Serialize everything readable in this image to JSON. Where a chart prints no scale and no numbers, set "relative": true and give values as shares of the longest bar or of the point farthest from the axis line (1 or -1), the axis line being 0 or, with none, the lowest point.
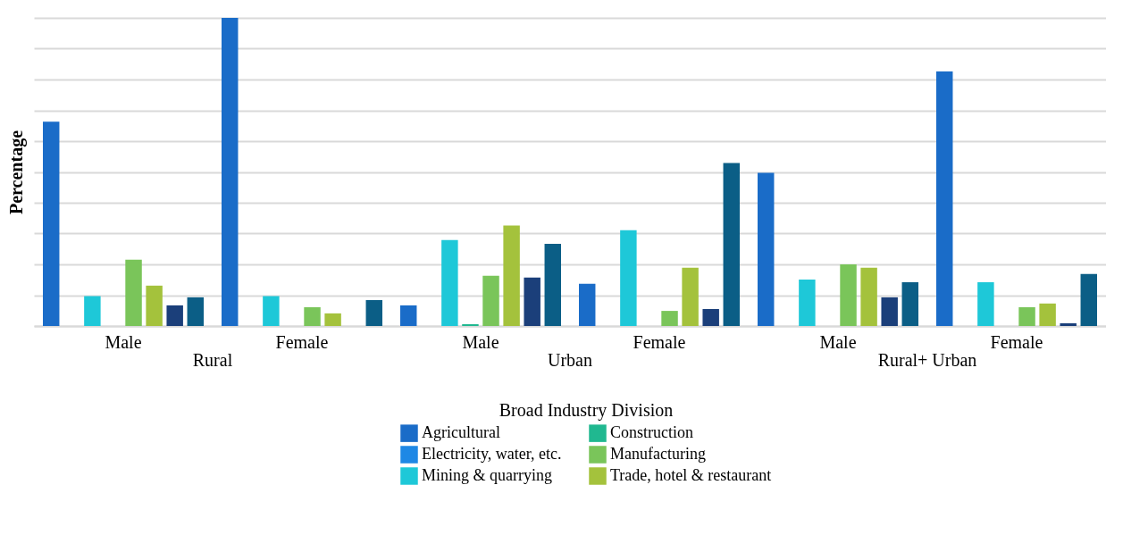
{
  "chart_data": {
    "type": "bar",
    "relative": true,
    "ylabel": "Percentage",
    "legend_title": "Broad Industry Division",
    "legend": "bottom",
    "grid": "y",
    "categories": [
      "Male",
      "Female",
      "Male",
      "Female",
      "Male",
      "Female"
    ],
    "annotations": [
      "Rural",
      "Urban",
      "Rural+ Urban"
    ],
    "series": [
      {
        "name": "Agricultural",
        "color": "#1a6cc8",
        "values": [
          0.663,
          1.0,
          0.067,
          0.137,
          0.497,
          0.826
        ]
      },
      {
        "name": "Electricity, water, etc.",
        "color": "#1e88e5",
        "values": [
          0,
          0,
          0,
          0,
          0,
          0
        ]
      },
      {
        "name": "Mining & quarrying",
        "color": "#1ec8d8",
        "values": [
          0.097,
          0.097,
          0.279,
          0.311,
          0.151,
          0.142
        ]
      },
      {
        "name": "Construction",
        "color": "#20b890",
        "values": [
          0,
          0,
          0.006,
          0,
          0,
          0
        ]
      },
      {
        "name": "Manufacturing",
        "color": "#7ac55a",
        "values": [
          0.215,
          0.061,
          0.163,
          0.049,
          0.2,
          0.061
        ]
      },
      {
        "name": "Trade, hotel & restaurant",
        "color": "#a4c23c",
        "values": [
          0.131,
          0.041,
          0.326,
          0.189,
          0.189,
          0.073
        ]
      },
      {
        "color": "#1b3f7a",
        "values": [
          0.067,
          0,
          0.157,
          0.055,
          0.093,
          0.009
        ]
      },
      {
        "color": "#0b5e86",
        "values": [
          0.093,
          0.084,
          0.267,
          0.529,
          0.142,
          0.169
        ]
      }
    ]
  }
}
